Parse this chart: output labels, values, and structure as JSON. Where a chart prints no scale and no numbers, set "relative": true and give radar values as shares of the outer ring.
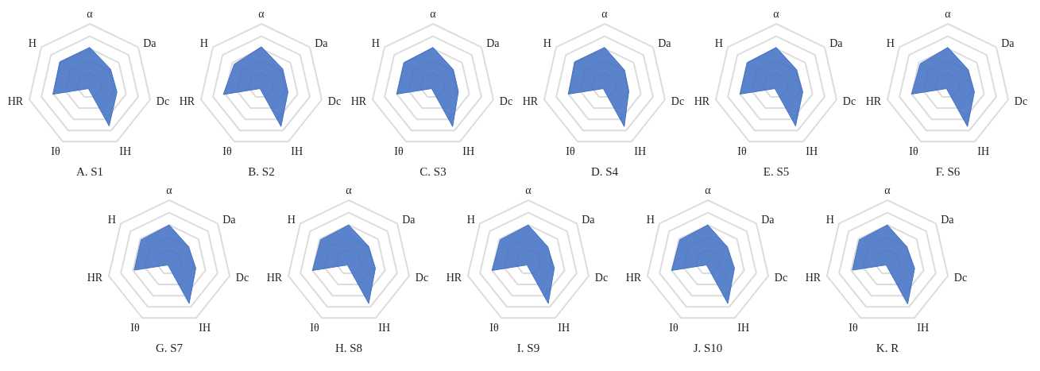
{
  "chart_data": [
    {
      "type": "radar",
      "title": "A. S1",
      "categories": [
        "α",
        "Da",
        "Dc",
        "IH",
        "Iθ",
        "HR",
        "H"
      ],
      "relative": true,
      "grid": true,
      "series": [
        {
          "color": "#4472c4",
          "values": [
            0.62,
            0.43,
            0.45,
            0.72,
            0.05,
            0.61,
            0.62
          ]
        }
      ]
    },
    {
      "type": "radar",
      "title": "B. S2",
      "categories": [
        "α",
        "Da",
        "Dc",
        "IH",
        "Iθ",
        "HR",
        "H"
      ],
      "relative": true,
      "grid": true,
      "series": [
        {
          "color": "#4472c4",
          "values": [
            0.63,
            0.44,
            0.44,
            0.73,
            0.05,
            0.63,
            0.56
          ]
        }
      ]
    },
    {
      "type": "radar",
      "title": "C. S3",
      "categories": [
        "α",
        "Da",
        "Dc",
        "IH",
        "Iθ",
        "HR",
        "H"
      ],
      "relative": true,
      "grid": true,
      "series": [
        {
          "color": "#4472c4",
          "values": [
            0.62,
            0.42,
            0.42,
            0.73,
            0.05,
            0.6,
            0.6
          ]
        }
      ]
    },
    {
      "type": "radar",
      "title": "D. S4",
      "categories": [
        "α",
        "Da",
        "Dc",
        "IH",
        "Iθ",
        "HR",
        "H"
      ],
      "relative": true,
      "grid": true,
      "series": [
        {
          "color": "#4472c4",
          "values": [
            0.62,
            0.41,
            0.4,
            0.73,
            0.05,
            0.6,
            0.62
          ]
        }
      ]
    },
    {
      "type": "radar",
      "title": "E. S5",
      "categories": [
        "α",
        "Da",
        "Dc",
        "IH",
        "Iθ",
        "HR",
        "H"
      ],
      "relative": true,
      "grid": true,
      "series": [
        {
          "color": "#4472c4",
          "values": [
            0.62,
            0.42,
            0.44,
            0.72,
            0.05,
            0.6,
            0.6
          ]
        }
      ]
    },
    {
      "type": "radar",
      "title": "F. S6",
      "categories": [
        "α",
        "Da",
        "Dc",
        "IH",
        "Iθ",
        "HR",
        "H"
      ],
      "relative": true,
      "grid": true,
      "series": [
        {
          "color": "#4472c4",
          "values": [
            0.62,
            0.42,
            0.44,
            0.73,
            0.05,
            0.6,
            0.57
          ]
        }
      ]
    },
    {
      "type": "radar",
      "title": "G. S7",
      "categories": [
        "α",
        "Da",
        "Dc",
        "IH",
        "Iθ",
        "HR",
        "H"
      ],
      "relative": true,
      "grid": true,
      "series": [
        {
          "color": "#4472c4",
          "values": [
            0.6,
            0.4,
            0.44,
            0.74,
            0.05,
            0.58,
            0.58
          ]
        }
      ]
    },
    {
      "type": "radar",
      "title": "H. S8",
      "categories": [
        "α",
        "Da",
        "Dc",
        "IH",
        "Iθ",
        "HR",
        "H"
      ],
      "relative": true,
      "grid": true,
      "series": [
        {
          "color": "#4472c4",
          "values": [
            0.6,
            0.41,
            0.44,
            0.74,
            0.05,
            0.6,
            0.58
          ]
        }
      ]
    },
    {
      "type": "radar",
      "title": "I. S9",
      "categories": [
        "α",
        "Da",
        "Dc",
        "IH",
        "Iθ",
        "HR",
        "H"
      ],
      "relative": true,
      "grid": true,
      "series": [
        {
          "color": "#4472c4",
          "values": [
            0.6,
            0.4,
            0.43,
            0.74,
            0.05,
            0.6,
            0.58
          ]
        }
      ]
    },
    {
      "type": "radar",
      "title": "J. S10",
      "categories": [
        "α",
        "Da",
        "Dc",
        "IH",
        "Iθ",
        "HR",
        "H"
      ],
      "relative": true,
      "grid": true,
      "series": [
        {
          "color": "#4472c4",
          "values": [
            0.6,
            0.4,
            0.44,
            0.74,
            0.05,
            0.6,
            0.58
          ]
        }
      ]
    },
    {
      "type": "radar",
      "title": "K. R",
      "categories": [
        "α",
        "Da",
        "Dc",
        "IH",
        "Iθ",
        "HR",
        "H"
      ],
      "relative": true,
      "grid": true,
      "series": [
        {
          "color": "#4472c4",
          "values": [
            0.6,
            0.4,
            0.45,
            0.75,
            0.05,
            0.58,
            0.58
          ]
        }
      ]
    }
  ]
}
